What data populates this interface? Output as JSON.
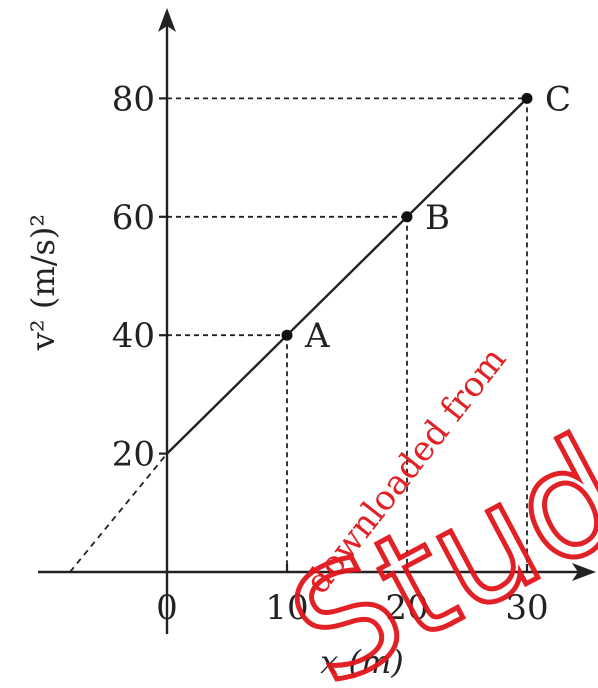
{
  "chart_data": {
    "type": "line",
    "title": "",
    "xlabel": "x (m)",
    "ylabel": "v² (m/s)²",
    "x_ticks": [
      "0",
      "10",
      "20",
      "30"
    ],
    "y_ticks": [
      "20",
      "40",
      "60",
      "80"
    ],
    "xlim": [
      -9,
      35
    ],
    "ylim": [
      -9,
      86
    ],
    "series": [
      {
        "x": [
          0,
          10,
          20,
          30
        ],
        "y": [
          20,
          40,
          60,
          80
        ]
      }
    ],
    "extrapolation": {
      "x": [
        -9,
        0
      ],
      "y": [
        2,
        20
      ],
      "style": "dashed"
    },
    "points": [
      {
        "label": "A",
        "x": 10,
        "y": 40
      },
      {
        "label": "B",
        "x": 20,
        "y": 60
      },
      {
        "label": "C",
        "x": 30,
        "y": 80
      }
    ],
    "guide_lines": "dashed",
    "grid": false,
    "legend": "none",
    "colors": {
      "axis": "#222222",
      "watermark": "#e0161b"
    }
  },
  "watermark": {
    "small": "downloaded from",
    "big": "Students"
  }
}
